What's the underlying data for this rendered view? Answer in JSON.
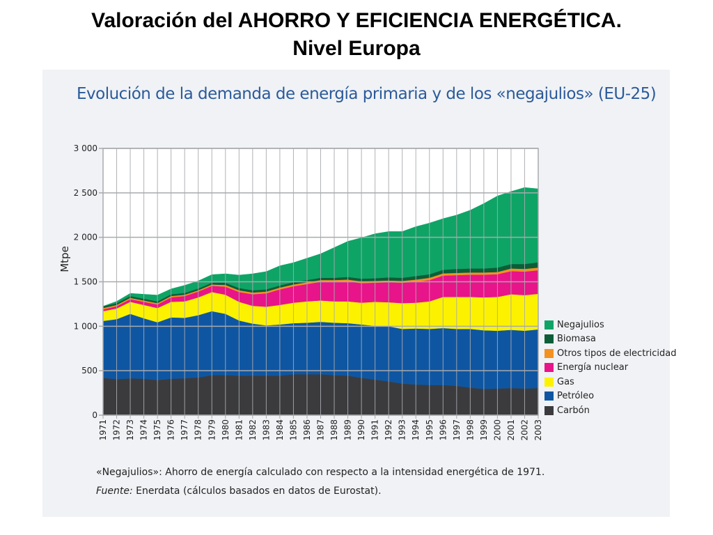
{
  "slide": {
    "title_line1": "Valoración del AHORRO Y EFICIENCIA ENERGÉTICA.",
    "title_line2": "Nivel Europa"
  },
  "colors": {
    "panel": "#f0f2f5",
    "grid": "#a8aaad",
    "title": "#2b5a9a"
  },
  "chart_data": {
    "type": "area",
    "stacked": true,
    "title": "Evolución de la demanda de energía primaria y de los «negajulios» (EU-25)",
    "ylabel": "Mtpe",
    "xlabel": "",
    "ylim": [
      0,
      3000
    ],
    "yticks": [
      0,
      500,
      1000,
      1500,
      2000,
      2500,
      3000
    ],
    "ytick_labels": [
      "0",
      "500",
      "1 000",
      "1 500",
      "2 000",
      "2 500",
      "3 000"
    ],
    "grid": true,
    "legend_position": "right",
    "x": [
      "1971",
      "1972",
      "1973",
      "1974",
      "1975",
      "1976",
      "1977",
      "1978",
      "1979",
      "1980",
      "1981",
      "1982",
      "1983",
      "1984",
      "1985",
      "1986",
      "1987",
      "1988",
      "1989",
      "1990",
      "1991",
      "1992",
      "1993",
      "1994",
      "1995",
      "1996",
      "1997",
      "1998",
      "1999",
      "2000",
      "2001",
      "2002",
      "2003"
    ],
    "series": [
      {
        "name": "Carbón",
        "color": "#3b3b3d",
        "values": [
          420,
          405,
          415,
          410,
          395,
          410,
          415,
          425,
          450,
          450,
          445,
          445,
          445,
          445,
          460,
          460,
          460,
          450,
          445,
          420,
          400,
          380,
          355,
          345,
          340,
          340,
          330,
          310,
          295,
          300,
          305,
          300,
          305
        ]
      },
      {
        "name": "Petróleo",
        "color": "#0f56a2",
        "values": [
          640,
          675,
          725,
          680,
          650,
          690,
          680,
          700,
          720,
          690,
          620,
          585,
          565,
          575,
          575,
          580,
          590,
          590,
          590,
          600,
          605,
          620,
          615,
          630,
          630,
          640,
          640,
          660,
          660,
          650,
          655,
          650,
          660
        ]
      },
      {
        "name": "Gas",
        "color": "#fcf200",
        "values": [
          110,
          120,
          135,
          150,
          160,
          175,
          185,
          200,
          215,
          215,
          210,
          200,
          210,
          220,
          230,
          240,
          240,
          240,
          245,
          245,
          270,
          270,
          290,
          290,
          310,
          350,
          360,
          360,
          370,
          380,
          400,
          400,
          400
        ]
      },
      {
        "name": "Energía nuclear",
        "color": "#e8148a",
        "values": [
          20,
          25,
          30,
          35,
          40,
          50,
          60,
          65,
          70,
          90,
          110,
          130,
          150,
          175,
          185,
          195,
          210,
          220,
          225,
          220,
          215,
          225,
          230,
          235,
          240,
          240,
          245,
          250,
          255,
          255,
          260,
          265,
          265
        ]
      },
      {
        "name": "Otros tipos de electricidad",
        "color": "#f39221",
        "values": [
          15,
          15,
          15,
          15,
          15,
          15,
          15,
          15,
          15,
          20,
          20,
          20,
          20,
          20,
          20,
          20,
          20,
          20,
          20,
          20,
          20,
          20,
          20,
          25,
          25,
          25,
          25,
          25,
          25,
          25,
          30,
          30,
          30
        ]
      },
      {
        "name": "Biomasa",
        "color": "#0b5e38",
        "values": [
          20,
          20,
          20,
          20,
          20,
          20,
          20,
          20,
          20,
          25,
          25,
          25,
          25,
          25,
          25,
          25,
          25,
          25,
          30,
          30,
          30,
          35,
          35,
          40,
          40,
          40,
          45,
          45,
          45,
          50,
          50,
          55,
          60
        ]
      },
      {
        "name": "Negajulios",
        "color": "#0ea466",
        "values": [
          0,
          20,
          30,
          50,
          70,
          60,
          85,
          85,
          90,
          100,
          145,
          185,
          200,
          220,
          220,
          245,
          270,
          340,
          400,
          460,
          500,
          515,
          520,
          555,
          575,
          575,
          605,
          655,
          730,
          805,
          815,
          860,
          825
        ]
      }
    ],
    "legend_order": [
      "Negajulios",
      "Biomasa",
      "Otros tipos de electricidad",
      "Energía nuclear",
      "Gas",
      "Petróleo",
      "Carbón"
    ]
  },
  "notes": {
    "negajulios_note": "«Negajulios»: Ahorro de energía calculado con respecto a la intensidad energética de 1971.",
    "source_label": "Fuente:",
    "source_text": " Enerdata (cálculos basados en datos de Eurostat)."
  }
}
